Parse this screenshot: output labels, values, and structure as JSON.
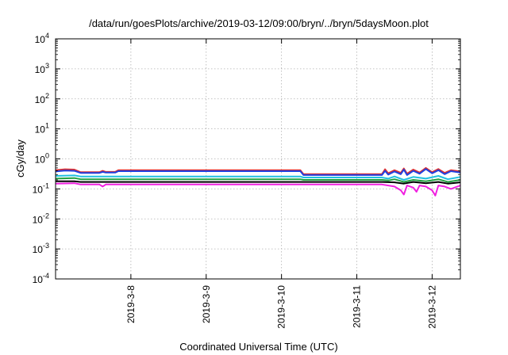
{
  "chart_data": {
    "type": "line",
    "title": "/data/run/goesPlots/archive/2019-03-12/09:00/bryn/../bryn/5daysMoon.plot",
    "xlabel": "Coordinated Universal Time (UTC)",
    "ylabel": "cGy/day",
    "yscale": "log",
    "ylim": [
      0.0001,
      10000
    ],
    "xlim": [
      "2019-03-07T00:00",
      "2019-03-12T09:00"
    ],
    "grid": true,
    "y_ticks": [
      {
        "base": "10",
        "exp": "-4",
        "value": 0.0001
      },
      {
        "base": "10",
        "exp": "-3",
        "value": 0.001
      },
      {
        "base": "10",
        "exp": "-2",
        "value": 0.01
      },
      {
        "base": "10",
        "exp": "-1",
        "value": 0.1
      },
      {
        "base": "10",
        "exp": "0",
        "value": 1
      },
      {
        "base": "10",
        "exp": "1",
        "value": 10
      },
      {
        "base": "10",
        "exp": "2",
        "value": 100
      },
      {
        "base": "10",
        "exp": "3",
        "value": 1000
      },
      {
        "base": "10",
        "exp": "4",
        "value": 10000
      }
    ],
    "x_ticks": [
      {
        "label": "2019-3-8",
        "date": "2019-03-08T00:00"
      },
      {
        "label": "2019-3-9",
        "date": "2019-03-09T00:00"
      },
      {
        "label": "2019-3-10",
        "date": "2019-03-10T00:00"
      },
      {
        "label": "2019-3-11",
        "date": "2019-03-11T00:00"
      },
      {
        "label": "2019-3-12",
        "date": "2019-03-12T00:00"
      }
    ],
    "series": [
      {
        "color": "#e03030",
        "points": [
          [
            "2019-03-07T00:00",
            0.42
          ],
          [
            "2019-03-07T03:00",
            0.45
          ],
          [
            "2019-03-07T06:00",
            0.44
          ],
          [
            "2019-03-07T08:00",
            0.36
          ],
          [
            "2019-03-07T14:00",
            0.36
          ],
          [
            "2019-03-07T15:00",
            0.4
          ],
          [
            "2019-03-07T16:00",
            0.37
          ],
          [
            "2019-03-07T19:00",
            0.37
          ],
          [
            "2019-03-07T20:00",
            0.42
          ],
          [
            "2019-03-10T06:00",
            0.42
          ],
          [
            "2019-03-10T07:00",
            0.31
          ],
          [
            "2019-03-11T08:00",
            0.31
          ],
          [
            "2019-03-11T09:00",
            0.45
          ],
          [
            "2019-03-11T10:00",
            0.33
          ],
          [
            "2019-03-11T12:00",
            0.42
          ],
          [
            "2019-03-11T14:00",
            0.34
          ],
          [
            "2019-03-11T15:00",
            0.48
          ],
          [
            "2019-03-11T16:00",
            0.32
          ],
          [
            "2019-03-11T18:00",
            0.44
          ],
          [
            "2019-03-11T20:00",
            0.35
          ],
          [
            "2019-03-11T22:00",
            0.5
          ],
          [
            "2019-03-12T00:00",
            0.36
          ],
          [
            "2019-03-12T02:00",
            0.46
          ],
          [
            "2019-03-12T04:00",
            0.34
          ],
          [
            "2019-03-12T06:00",
            0.42
          ],
          [
            "2019-03-12T09:00",
            0.38
          ]
        ]
      },
      {
        "color": "#2040e0",
        "points": [
          [
            "2019-03-07T00:00",
            0.38
          ],
          [
            "2019-03-07T03:00",
            0.41
          ],
          [
            "2019-03-07T06:00",
            0.4
          ],
          [
            "2019-03-07T08:00",
            0.34
          ],
          [
            "2019-03-07T14:00",
            0.34
          ],
          [
            "2019-03-07T15:00",
            0.37
          ],
          [
            "2019-03-07T16:00",
            0.35
          ],
          [
            "2019-03-07T19:00",
            0.35
          ],
          [
            "2019-03-07T20:00",
            0.39
          ],
          [
            "2019-03-10T06:00",
            0.39
          ],
          [
            "2019-03-10T07:00",
            0.29
          ],
          [
            "2019-03-11T08:00",
            0.29
          ],
          [
            "2019-03-11T09:00",
            0.4
          ],
          [
            "2019-03-11T10:00",
            0.3
          ],
          [
            "2019-03-11T12:00",
            0.38
          ],
          [
            "2019-03-11T14:00",
            0.31
          ],
          [
            "2019-03-11T15:00",
            0.44
          ],
          [
            "2019-03-11T16:00",
            0.29
          ],
          [
            "2019-03-11T18:00",
            0.4
          ],
          [
            "2019-03-11T20:00",
            0.32
          ],
          [
            "2019-03-11T22:00",
            0.46
          ],
          [
            "2019-03-12T00:00",
            0.33
          ],
          [
            "2019-03-12T02:00",
            0.42
          ],
          [
            "2019-03-12T04:00",
            0.31
          ],
          [
            "2019-03-12T06:00",
            0.39
          ],
          [
            "2019-03-12T09:00",
            0.35
          ]
        ]
      },
      {
        "color": "#20c0e0",
        "points": [
          [
            "2019-03-07T00:00",
            0.27
          ],
          [
            "2019-03-07T06:00",
            0.28
          ],
          [
            "2019-03-07T08:00",
            0.26
          ],
          [
            "2019-03-07T20:00",
            0.26
          ],
          [
            "2019-03-10T06:00",
            0.26
          ],
          [
            "2019-03-10T07:00",
            0.24
          ],
          [
            "2019-03-11T08:00",
            0.24
          ],
          [
            "2019-03-11T10:00",
            0.22
          ],
          [
            "2019-03-11T12:00",
            0.26
          ],
          [
            "2019-03-11T15:00",
            0.2
          ],
          [
            "2019-03-11T18:00",
            0.25
          ],
          [
            "2019-03-11T22:00",
            0.22
          ],
          [
            "2019-03-12T02:00",
            0.27
          ],
          [
            "2019-03-12T05:00",
            0.21
          ],
          [
            "2019-03-12T09:00",
            0.25
          ]
        ]
      },
      {
        "color": "#20a040",
        "points": [
          [
            "2019-03-07T00:00",
            0.22
          ],
          [
            "2019-03-07T06:00",
            0.23
          ],
          [
            "2019-03-07T08:00",
            0.21
          ],
          [
            "2019-03-07T20:00",
            0.21
          ],
          [
            "2019-03-10T06:00",
            0.21
          ],
          [
            "2019-03-10T07:00",
            0.2
          ],
          [
            "2019-03-11T08:00",
            0.2
          ],
          [
            "2019-03-11T10:00",
            0.19
          ],
          [
            "2019-03-11T12:00",
            0.21
          ],
          [
            "2019-03-11T15:00",
            0.17
          ],
          [
            "2019-03-11T18:00",
            0.2
          ],
          [
            "2019-03-11T22:00",
            0.18
          ],
          [
            "2019-03-12T02:00",
            0.21
          ],
          [
            "2019-03-12T05:00",
            0.17
          ],
          [
            "2019-03-12T09:00",
            0.2
          ]
        ]
      },
      {
        "color": "#000000",
        "points": [
          [
            "2019-03-07T00:00",
            0.18
          ],
          [
            "2019-03-07T06:00",
            0.18
          ],
          [
            "2019-03-07T08:00",
            0.17
          ],
          [
            "2019-03-07T20:00",
            0.17
          ],
          [
            "2019-03-10T06:00",
            0.17
          ],
          [
            "2019-03-10T07:00",
            0.17
          ],
          [
            "2019-03-11T08:00",
            0.17
          ],
          [
            "2019-03-11T12:00",
            0.165
          ],
          [
            "2019-03-11T15:00",
            0.15
          ],
          [
            "2019-03-11T18:00",
            0.17
          ],
          [
            "2019-03-11T22:00",
            0.155
          ],
          [
            "2019-03-12T02:00",
            0.17
          ],
          [
            "2019-03-12T05:00",
            0.15
          ],
          [
            "2019-03-12T09:00",
            0.165
          ]
        ]
      },
      {
        "color": "#f020e0",
        "points": [
          [
            "2019-03-07T00:00",
            0.15
          ],
          [
            "2019-03-07T06:00",
            0.155
          ],
          [
            "2019-03-07T08:00",
            0.14
          ],
          [
            "2019-03-07T14:00",
            0.14
          ],
          [
            "2019-03-07T15:00",
            0.12
          ],
          [
            "2019-03-07T16:00",
            0.14
          ],
          [
            "2019-03-07T20:00",
            0.14
          ],
          [
            "2019-03-10T06:00",
            0.14
          ],
          [
            "2019-03-10T07:00",
            0.14
          ],
          [
            "2019-03-11T08:00",
            0.14
          ],
          [
            "2019-03-11T12:00",
            0.12
          ],
          [
            "2019-03-11T14:00",
            0.09
          ],
          [
            "2019-03-11T15:00",
            0.065
          ],
          [
            "2019-03-11T16:00",
            0.13
          ],
          [
            "2019-03-11T18:00",
            0.11
          ],
          [
            "2019-03-11T19:00",
            0.08
          ],
          [
            "2019-03-11T20:00",
            0.13
          ],
          [
            "2019-03-11T22:00",
            0.12
          ],
          [
            "2019-03-12T00:00",
            0.09
          ],
          [
            "2019-03-12T01:00",
            0.06
          ],
          [
            "2019-03-12T02:00",
            0.13
          ],
          [
            "2019-03-12T04:00",
            0.12
          ],
          [
            "2019-03-12T06:00",
            0.1
          ],
          [
            "2019-03-12T09:00",
            0.13
          ]
        ]
      }
    ]
  }
}
